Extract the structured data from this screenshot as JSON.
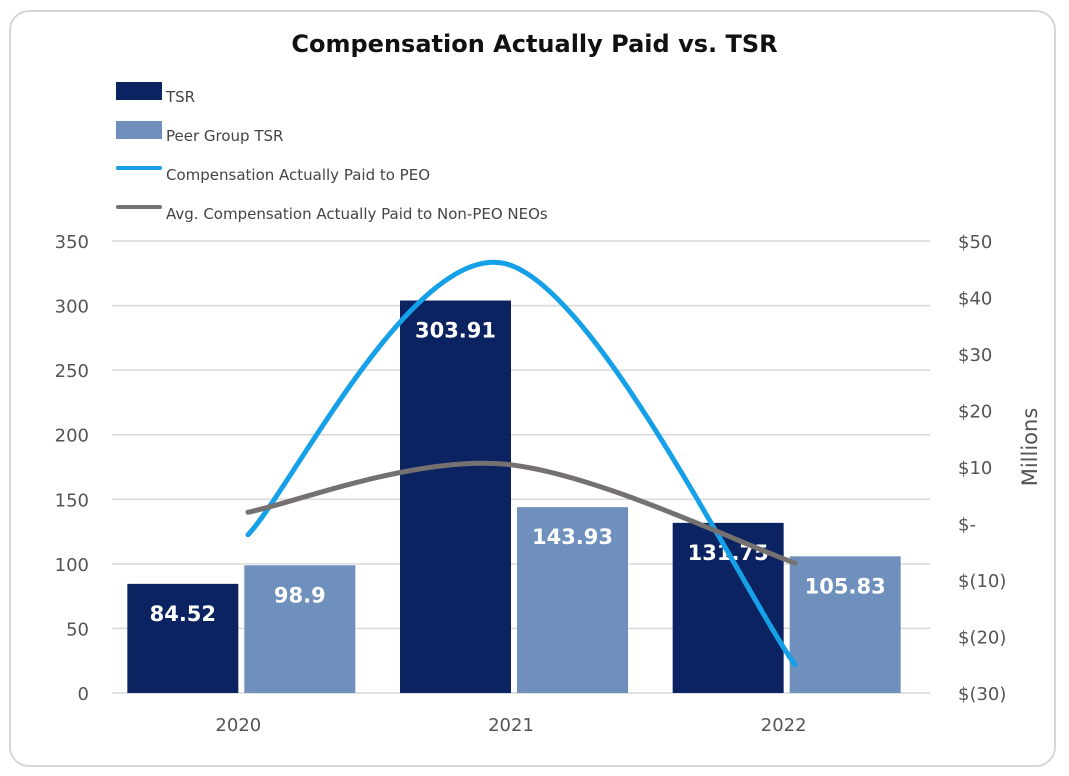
{
  "chart_data": {
    "type": "bar",
    "title": "Compensation Actually Paid vs. TSR",
    "categories": [
      "2020",
      "2021",
      "2022"
    ],
    "series": [
      {
        "name": "TSR",
        "type": "bar",
        "axis": "left",
        "color": "#0b2461",
        "values": [
          84.52,
          303.91,
          131.75
        ],
        "labels": [
          "84.52",
          "303.91",
          "131.75"
        ]
      },
      {
        "name": "Peer Group TSR",
        "type": "bar",
        "axis": "left",
        "color": "#6f8fbd",
        "values": [
          98.9,
          143.93,
          105.83
        ],
        "labels": [
          "98.9",
          "143.93",
          "105.83"
        ]
      },
      {
        "name": "Compensation Actually Paid to PEO",
        "type": "line",
        "axis": "right",
        "color": "#16a0e8",
        "values": [
          -2,
          46,
          -25
        ]
      },
      {
        "name": "Avg. Compensation Actually Paid to Non-PEO NEOs",
        "type": "line",
        "axis": "right",
        "color": "#757171",
        "values": [
          2,
          10.5,
          -7
        ]
      }
    ],
    "y_left": {
      "min": 0,
      "max": 350,
      "ticks": [
        0,
        50,
        100,
        150,
        200,
        250,
        300,
        350
      ],
      "tick_labels": [
        "0",
        "50",
        "100",
        "150",
        "200",
        "250",
        "300",
        "350"
      ]
    },
    "y_right": {
      "min": -30,
      "max": 50,
      "label": "Millions",
      "ticks": [
        -30,
        -20,
        -10,
        0,
        10,
        20,
        30,
        40,
        50
      ],
      "tick_labels": [
        "$(30)",
        "$(20)",
        "$(10)",
        "$-",
        "$10",
        "$20",
        "$30",
        "$40",
        "$50"
      ]
    },
    "grid": true,
    "legend_position": "top-left"
  }
}
